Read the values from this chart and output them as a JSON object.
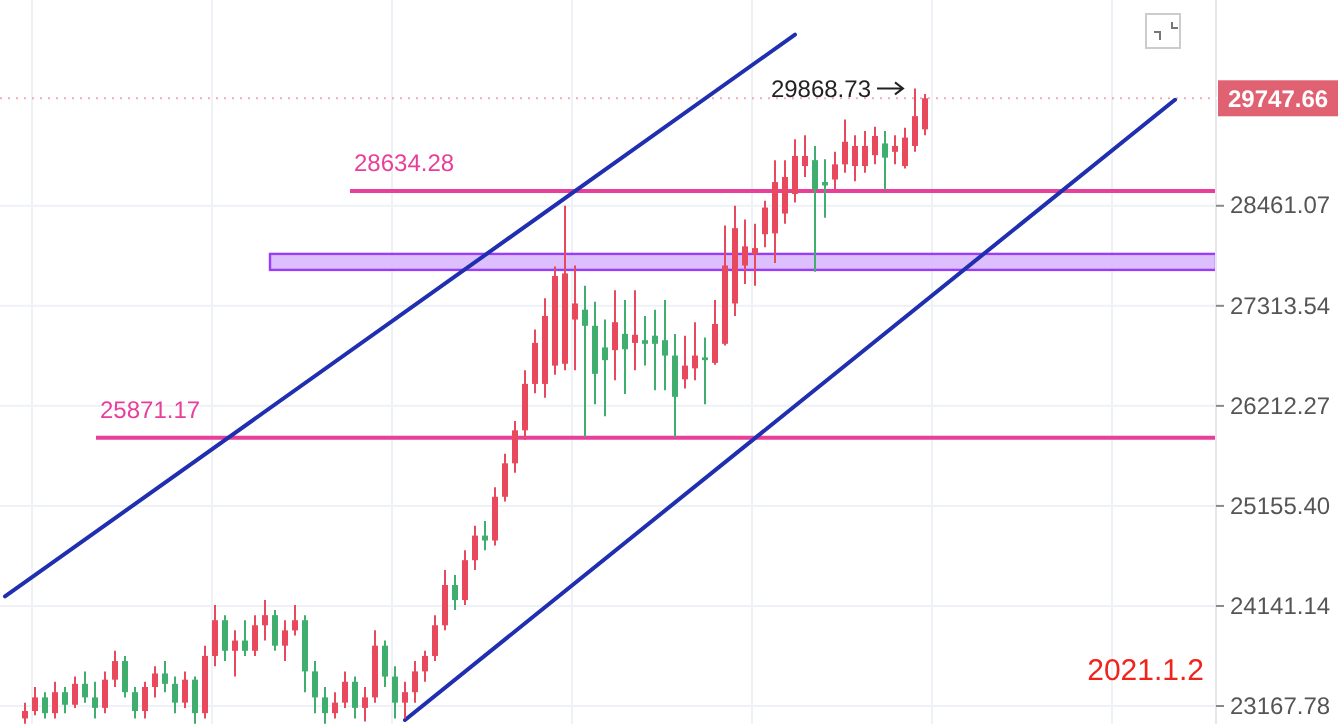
{
  "chart_data": {
    "type": "candlestick",
    "log": "y",
    "grid": true,
    "tick_labels": "y",
    "colors": [
      null,
      null,
      "#e8495c",
      "#e8495c",
      "#3fae6e",
      "#e8495c",
      "#3fae6e",
      "#e8495c",
      "#3fae6e",
      "#3fae6e",
      "#e8495c",
      "#e8495c",
      "#3fae6e",
      "#3fae6e",
      "#e8495c",
      "#e8495c",
      "#3fae6e",
      "#3fae6e",
      "#e8495c",
      "#3fae6e",
      "#e8495c",
      "#e8495c",
      "#3fae6e",
      "#e8495c",
      "#3fae6e",
      "#e8495c",
      "#e8495c",
      "#3fae6e",
      "#e8495c",
      "#e8495c",
      "#3fae6e",
      "#3fae6e",
      "#3fae6e",
      "#e8495c",
      "#e8495c",
      "#3fae6e",
      "#e8495c",
      "#e8495c",
      "#3fae6e",
      "#3fae6e",
      "#e8495c",
      "#e8495c",
      "#e8495c",
      "#e8495c",
      "#e8495c",
      "#3fae6e",
      "#e8495c",
      "#e8495c",
      "#3fae6e",
      "#e8495c",
      "#e8495c",
      "#e8495c",
      "#e8495c",
      "#e8495c",
      "#e8495c",
      "#e8495c",
      "#e8495c",
      "#e8495c",
      "#3fae6e",
      "#3fae6e",
      "#3fae6e",
      "#e8495c",
      "#3fae6e",
      "#e8495c",
      "#3fae6e",
      "#3fae6e",
      "#3fae6e",
      "#3fae6e",
      "#e8495c",
      "#e8495c",
      "#3fae6e",
      "#e8495c",
      "#e8495c",
      "#e8495c",
      "#e8495c",
      "#e8495c",
      "#e8495c",
      "#e8495c",
      "#e8495c",
      "#e8495c",
      "#e8495c",
      "#3fae6e",
      "#3fae6e",
      "#e8495c",
      "#e8495c",
      "#e8495c",
      "#e8495c",
      "#e8495c",
      "#3fae6e",
      "#e8495c",
      "#e8495c",
      "#e8495c",
      "#e8495c",
      null,
      null,
      null,
      null,
      null,
      null,
      null,
      null,
      null,
      null,
      null,
      null,
      null,
      null,
      null,
      null,
      null,
      null,
      null,
      null,
      null,
      null,
      null,
      null,
      null,
      null,
      null,
      null,
      null
    ],
    "ylim": [
      22997,
      30975
    ],
    "categories": [
      null,
      null,
      null,
      null,
      null,
      null,
      null,
      null,
      null,
      null,
      null,
      null,
      null,
      null,
      null,
      null,
      null,
      null,
      null,
      null,
      null,
      null,
      null,
      null,
      null,
      null,
      null,
      null,
      null,
      null,
      null,
      null,
      null,
      null,
      null,
      null,
      null,
      null,
      null,
      null,
      null,
      null,
      null,
      null,
      null,
      null,
      null,
      null,
      null,
      null,
      null,
      null,
      null,
      null,
      null,
      null,
      null,
      null,
      null,
      null,
      null,
      null,
      null,
      null,
      null,
      null,
      null,
      null,
      null,
      null,
      null,
      null,
      null,
      null,
      null,
      null,
      null,
      null,
      null,
      null,
      null,
      null,
      null,
      null,
      null,
      null,
      null,
      null,
      null,
      null,
      null,
      null,
      null,
      null,
      null,
      null,
      null,
      null,
      null,
      null,
      null,
      null,
      null,
      null,
      null,
      null,
      null,
      null,
      null,
      null,
      null,
      null,
      null,
      null,
      null,
      null,
      null,
      null,
      null,
      null,
      null,
      null
    ],
    "yticks": [
      {
        "value": 23167.78,
        "label": "23167.78"
      },
      {
        "value": 24141.14,
        "label": "24141.14"
      },
      {
        "value": 25155.4,
        "label": "25155.40"
      },
      {
        "value": 26212.27,
        "label": "26212.27"
      },
      {
        "value": 27313.54,
        "label": "27313.54"
      },
      {
        "value": 28461.07,
        "label": "28461.07"
      }
    ],
    "ohlc": [
      null,
      null,
      [
        23050,
        23200,
        23000,
        23120
      ],
      [
        23120,
        23350,
        23080,
        23250
      ],
      [
        23250,
        23300,
        23050,
        23100
      ],
      [
        23100,
        23400,
        23050,
        23300
      ],
      [
        23300,
        23350,
        23100,
        23180
      ],
      [
        23180,
        23450,
        23150,
        23380
      ],
      [
        23380,
        23500,
        23200,
        23250
      ],
      [
        23250,
        23400,
        23050,
        23150
      ],
      [
        23150,
        23500,
        23100,
        23420
      ],
      [
        23420,
        23700,
        23350,
        23600
      ],
      [
        23600,
        23650,
        23250,
        23300
      ],
      [
        23300,
        23350,
        23050,
        23120
      ],
      [
        23120,
        23400,
        23050,
        23350
      ],
      [
        23350,
        23550,
        23250,
        23480
      ],
      [
        23480,
        23600,
        23300,
        23380
      ],
      [
        23380,
        23450,
        23100,
        23200
      ],
      [
        23200,
        23500,
        23150,
        23420
      ],
      [
        23420,
        23450,
        23000,
        23100
      ],
      [
        23100,
        23750,
        23050,
        23650
      ],
      [
        23650,
        24150,
        23550,
        24000
      ],
      [
        24000,
        24050,
        23600,
        23700
      ],
      [
        23700,
        23900,
        23450,
        23800
      ],
      [
        23800,
        24000,
        23650,
        23700
      ],
      [
        23700,
        24050,
        23650,
        23950
      ],
      [
        23950,
        24200,
        23800,
        24050
      ],
      [
        24050,
        24100,
        23700,
        23750
      ],
      [
        23750,
        24000,
        23600,
        23900
      ],
      [
        23900,
        24150,
        23850,
        24000
      ],
      [
        24000,
        24050,
        23300,
        23500
      ],
      [
        23500,
        23600,
        23100,
        23250
      ],
      [
        23250,
        23350,
        23000,
        23100
      ],
      [
        23100,
        23300,
        23050,
        23200
      ],
      [
        23200,
        23500,
        23150,
        23400
      ],
      [
        23400,
        23450,
        23050,
        23150
      ],
      [
        23150,
        23350,
        23020,
        23250
      ],
      [
        23250,
        23900,
        23200,
        23750
      ],
      [
        23750,
        23800,
        23350,
        23450
      ],
      [
        23450,
        23550,
        23050,
        23200
      ],
      [
        23200,
        23400,
        23050,
        23300
      ],
      [
        23300,
        23600,
        23200,
        23500
      ],
      [
        23500,
        23700,
        23400,
        23650
      ],
      [
        23650,
        24050,
        23600,
        23950
      ],
      [
        23950,
        24500,
        23900,
        24350
      ],
      [
        24350,
        24450,
        24100,
        24200
      ],
      [
        24200,
        24700,
        24150,
        24600
      ],
      [
        24600,
        24950,
        24500,
        24850
      ],
      [
        24850,
        25000,
        24700,
        24800
      ],
      [
        24800,
        25350,
        24750,
        25250
      ],
      [
        25250,
        25700,
        25200,
        25600
      ],
      [
        25600,
        26050,
        25500,
        25950
      ],
      [
        25950,
        26600,
        25850,
        26450
      ],
      [
        26450,
        27050,
        26350,
        26900
      ],
      [
        26450,
        27400,
        26300,
        27200
      ],
      [
        26650,
        27760,
        26550,
        27650
      ],
      [
        26670,
        28461,
        26600,
        27680
      ],
      [
        27160,
        27770,
        26600,
        27340
      ],
      [
        27270,
        27540,
        25880,
        27090
      ],
      [
        27090,
        27360,
        26230,
        26560
      ],
      [
        26850,
        27160,
        26100,
        26710
      ],
      [
        26820,
        27490,
        26490,
        27130
      ],
      [
        27000,
        27380,
        26340,
        26830
      ],
      [
        26900,
        27490,
        26600,
        26990
      ],
      [
        26930,
        27200,
        26650,
        26890
      ],
      [
        26980,
        27270,
        26380,
        26890
      ],
      [
        26930,
        27380,
        26380,
        26760
      ],
      [
        26760,
        27000,
        25880,
        26310
      ],
      [
        26500,
        26980,
        26400,
        26650
      ],
      [
        26620,
        27130,
        26490,
        26760
      ],
      [
        26740,
        26960,
        26230,
        26710
      ],
      [
        26680,
        27380,
        26660,
        27110
      ],
      [
        26890,
        28230,
        26870,
        27770
      ],
      [
        27340,
        28460,
        27200,
        28200
      ],
      [
        27770,
        28300,
        27560,
        27990
      ],
      [
        27900,
        28250,
        27540,
        27970
      ],
      [
        28130,
        28520,
        27980,
        28440
      ],
      [
        28140,
        29000,
        27800,
        28740
      ],
      [
        28370,
        29000,
        28250,
        28800
      ],
      [
        28600,
        29250,
        28500,
        29050
      ],
      [
        28930,
        29300,
        28800,
        29050
      ],
      [
        29000,
        29170,
        27700,
        28650
      ],
      [
        28740,
        29010,
        28320,
        28700
      ],
      [
        28770,
        29100,
        28650,
        28950
      ],
      [
        28950,
        29490,
        28850,
        29220
      ],
      [
        28930,
        29300,
        28750,
        29170
      ],
      [
        28930,
        29350,
        28850,
        29170
      ],
      [
        29060,
        29400,
        28950,
        29290
      ],
      [
        29200,
        29350,
        28650,
        29030
      ],
      [
        29100,
        29300,
        28950,
        29170
      ],
      [
        28930,
        29390,
        28900,
        29270
      ],
      [
        29170,
        29868.73,
        29100,
        29530
      ],
      [
        29370,
        29800,
        29300,
        29747.66
      ],
      null,
      null,
      null,
      null,
      null,
      null,
      null,
      null,
      null,
      null,
      null,
      null,
      null,
      null,
      null,
      null,
      null,
      null,
      null,
      null,
      null,
      null,
      null,
      null,
      null,
      null,
      null,
      null,
      null
    ],
    "series": [
      {
        "type": "line",
        "color": "#1f2fb0",
        "values": [
          24236,
          null,
          null,
          null,
          null,
          null,
          null,
          null,
          null,
          null,
          null,
          null,
          null,
          null,
          null,
          null,
          null,
          null,
          null,
          null,
          null,
          null,
          null,
          null,
          null,
          null,
          null,
          null,
          null,
          null,
          null,
          null,
          null,
          null,
          null,
          null,
          null,
          null,
          null,
          null,
          null,
          null,
          null,
          null,
          null,
          null,
          null,
          null,
          null,
          null,
          null,
          null,
          null,
          null,
          null,
          null,
          null,
          null,
          null,
          null,
          null,
          null,
          null,
          null,
          null,
          null,
          null,
          null,
          null,
          null,
          null,
          null,
          null,
          null,
          null,
          null,
          null,
          null,
          null,
          30537,
          null,
          null,
          null,
          null,
          null,
          null,
          null,
          null,
          null,
          null,
          null,
          null,
          null,
          null,
          null,
          null,
          null,
          null,
          null,
          null,
          null,
          null,
          null,
          null,
          null,
          null,
          null,
          null,
          null,
          null,
          null,
          null,
          null,
          null,
          null,
          null,
          null,
          null,
          null,
          null,
          null,
          null
        ]
      },
      {
        "type": "line",
        "color": "#1f2fb0",
        "values": [
          null,
          null,
          null,
          null,
          null,
          null,
          null,
          null,
          null,
          null,
          null,
          null,
          null,
          null,
          null,
          null,
          null,
          null,
          null,
          null,
          null,
          null,
          null,
          null,
          null,
          null,
          null,
          null,
          null,
          null,
          null,
          null,
          null,
          null,
          null,
          null,
          null,
          null,
          null,
          null,
          23035,
          null,
          null,
          null,
          null,
          null,
          null,
          null,
          null,
          null,
          null,
          null,
          null,
          null,
          null,
          null,
          null,
          null,
          null,
          null,
          null,
          null,
          null,
          null,
          null,
          null,
          null,
          null,
          null,
          null,
          null,
          null,
          null,
          null,
          null,
          null,
          null,
          null,
          null,
          null,
          null,
          null,
          null,
          null,
          null,
          null,
          null,
          null,
          null,
          null,
          null,
          null,
          null,
          null,
          null,
          null,
          null,
          null,
          null,
          null,
          null,
          null,
          null,
          null,
          null,
          null,
          null,
          null,
          null,
          null,
          null,
          null,
          null,
          null,
          null,
          null,
          null,
          29729,
          null,
          null,
          null,
          null
        ]
      }
    ],
    "ref_lines": [
      {
        "axis": "y",
        "value": 25871.17,
        "label": "25871.17",
        "color": "#e8409a"
      },
      {
        "axis": "y",
        "value": 28634.28,
        "label": "28634.28",
        "color": "#e8409a"
      },
      {
        "axis": "y",
        "value": 29747.66,
        "label": "29747.66",
        "color": "#e06272",
        "line_style": "dotted"
      }
    ],
    "bands": [
      {
        "axis": "y",
        "from": 27720,
        "to": 27903,
        "color": "#d8b4fe"
      }
    ],
    "annotations": [
      "29868.73",
      "2021.1.2"
    ]
  }
}
